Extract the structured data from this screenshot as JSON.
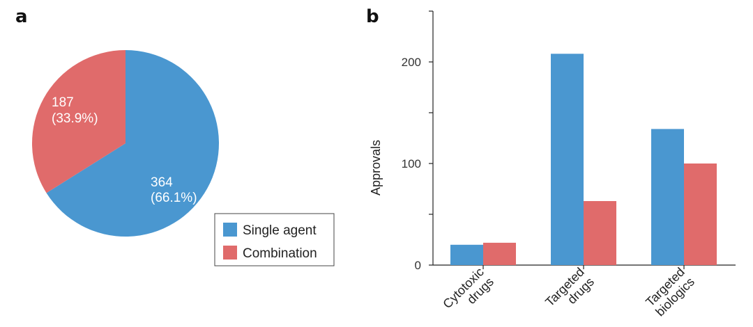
{
  "panels": {
    "a_label": "a",
    "b_label": "b"
  },
  "colors": {
    "single": "#4a97d0",
    "combination": "#e06b6b"
  },
  "chart_data": [
    {
      "type": "pie",
      "panel": "a",
      "slices": [
        {
          "name": "Single agent",
          "value": 364,
          "label_value": "364",
          "label_pct": "(66.1%)"
        },
        {
          "name": "Combination",
          "value": 187,
          "label_value": "187",
          "label_pct": "(33.9%)"
        }
      ],
      "legend": {
        "entries": [
          "Single agent",
          "Combination"
        ],
        "placement": "bottom-right"
      }
    },
    {
      "type": "bar",
      "panel": "b",
      "categories": [
        {
          "line1": "Cytotoxic",
          "line2": "drugs"
        },
        {
          "line1": "Targeted",
          "line2": "drugs"
        },
        {
          "line1": "Targeted",
          "line2": "biologics"
        }
      ],
      "series": [
        {
          "name": "Single agent",
          "values": [
            20,
            208,
            134
          ]
        },
        {
          "name": "Combination",
          "values": [
            22,
            63,
            100
          ]
        }
      ],
      "ylabel": "Approvals",
      "ylim": [
        0,
        250
      ],
      "yticks": [
        "0",
        "100",
        "200"
      ],
      "grid": false
    }
  ]
}
